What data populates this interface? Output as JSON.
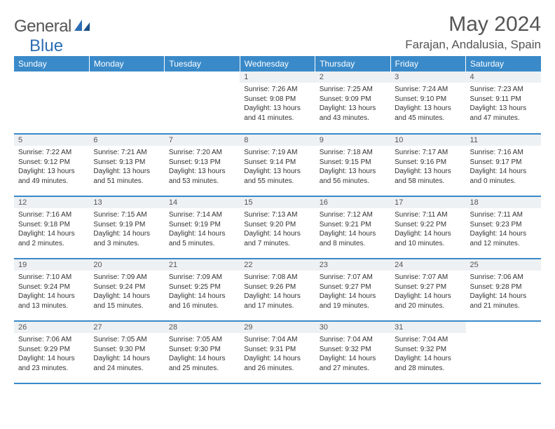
{
  "brand": {
    "name_a": "General",
    "name_b": "Blue"
  },
  "title": "May 2024",
  "location": "Farajan, Andalusia, Spain",
  "colors": {
    "header_bg": "#3a8ac9",
    "header_text": "#ffffff",
    "daynum_bg": "#eef1f3",
    "row_divider": "#3a8ac9",
    "body_text": "#333333",
    "title_text": "#555555"
  },
  "typography": {
    "title_fontsize": 30,
    "location_fontsize": 17,
    "header_fontsize": 12,
    "daynum_fontsize": 11,
    "body_fontsize": 10
  },
  "weekdays": [
    "Sunday",
    "Monday",
    "Tuesday",
    "Wednesday",
    "Thursday",
    "Friday",
    "Saturday"
  ],
  "weeks": [
    [
      null,
      null,
      null,
      {
        "n": "1",
        "sunrise": "7:26 AM",
        "sunset": "9:08 PM",
        "dl": "13 hours and 41 minutes."
      },
      {
        "n": "2",
        "sunrise": "7:25 AM",
        "sunset": "9:09 PM",
        "dl": "13 hours and 43 minutes."
      },
      {
        "n": "3",
        "sunrise": "7:24 AM",
        "sunset": "9:10 PM",
        "dl": "13 hours and 45 minutes."
      },
      {
        "n": "4",
        "sunrise": "7:23 AM",
        "sunset": "9:11 PM",
        "dl": "13 hours and 47 minutes."
      }
    ],
    [
      {
        "n": "5",
        "sunrise": "7:22 AM",
        "sunset": "9:12 PM",
        "dl": "13 hours and 49 minutes."
      },
      {
        "n": "6",
        "sunrise": "7:21 AM",
        "sunset": "9:13 PM",
        "dl": "13 hours and 51 minutes."
      },
      {
        "n": "7",
        "sunrise": "7:20 AM",
        "sunset": "9:13 PM",
        "dl": "13 hours and 53 minutes."
      },
      {
        "n": "8",
        "sunrise": "7:19 AM",
        "sunset": "9:14 PM",
        "dl": "13 hours and 55 minutes."
      },
      {
        "n": "9",
        "sunrise": "7:18 AM",
        "sunset": "9:15 PM",
        "dl": "13 hours and 56 minutes."
      },
      {
        "n": "10",
        "sunrise": "7:17 AM",
        "sunset": "9:16 PM",
        "dl": "13 hours and 58 minutes."
      },
      {
        "n": "11",
        "sunrise": "7:16 AM",
        "sunset": "9:17 PM",
        "dl": "14 hours and 0 minutes."
      }
    ],
    [
      {
        "n": "12",
        "sunrise": "7:16 AM",
        "sunset": "9:18 PM",
        "dl": "14 hours and 2 minutes."
      },
      {
        "n": "13",
        "sunrise": "7:15 AM",
        "sunset": "9:19 PM",
        "dl": "14 hours and 3 minutes."
      },
      {
        "n": "14",
        "sunrise": "7:14 AM",
        "sunset": "9:19 PM",
        "dl": "14 hours and 5 minutes."
      },
      {
        "n": "15",
        "sunrise": "7:13 AM",
        "sunset": "9:20 PM",
        "dl": "14 hours and 7 minutes."
      },
      {
        "n": "16",
        "sunrise": "7:12 AM",
        "sunset": "9:21 PM",
        "dl": "14 hours and 8 minutes."
      },
      {
        "n": "17",
        "sunrise": "7:11 AM",
        "sunset": "9:22 PM",
        "dl": "14 hours and 10 minutes."
      },
      {
        "n": "18",
        "sunrise": "7:11 AM",
        "sunset": "9:23 PM",
        "dl": "14 hours and 12 minutes."
      }
    ],
    [
      {
        "n": "19",
        "sunrise": "7:10 AM",
        "sunset": "9:24 PM",
        "dl": "14 hours and 13 minutes."
      },
      {
        "n": "20",
        "sunrise": "7:09 AM",
        "sunset": "9:24 PM",
        "dl": "14 hours and 15 minutes."
      },
      {
        "n": "21",
        "sunrise": "7:09 AM",
        "sunset": "9:25 PM",
        "dl": "14 hours and 16 minutes."
      },
      {
        "n": "22",
        "sunrise": "7:08 AM",
        "sunset": "9:26 PM",
        "dl": "14 hours and 17 minutes."
      },
      {
        "n": "23",
        "sunrise": "7:07 AM",
        "sunset": "9:27 PM",
        "dl": "14 hours and 19 minutes."
      },
      {
        "n": "24",
        "sunrise": "7:07 AM",
        "sunset": "9:27 PM",
        "dl": "14 hours and 20 minutes."
      },
      {
        "n": "25",
        "sunrise": "7:06 AM",
        "sunset": "9:28 PM",
        "dl": "14 hours and 21 minutes."
      }
    ],
    [
      {
        "n": "26",
        "sunrise": "7:06 AM",
        "sunset": "9:29 PM",
        "dl": "14 hours and 23 minutes."
      },
      {
        "n": "27",
        "sunrise": "7:05 AM",
        "sunset": "9:30 PM",
        "dl": "14 hours and 24 minutes."
      },
      {
        "n": "28",
        "sunrise": "7:05 AM",
        "sunset": "9:30 PM",
        "dl": "14 hours and 25 minutes."
      },
      {
        "n": "29",
        "sunrise": "7:04 AM",
        "sunset": "9:31 PM",
        "dl": "14 hours and 26 minutes."
      },
      {
        "n": "30",
        "sunrise": "7:04 AM",
        "sunset": "9:32 PM",
        "dl": "14 hours and 27 minutes."
      },
      {
        "n": "31",
        "sunrise": "7:04 AM",
        "sunset": "9:32 PM",
        "dl": "14 hours and 28 minutes."
      },
      null
    ]
  ],
  "labels": {
    "sunrise": "Sunrise:",
    "sunset": "Sunset:",
    "daylight": "Daylight:"
  }
}
